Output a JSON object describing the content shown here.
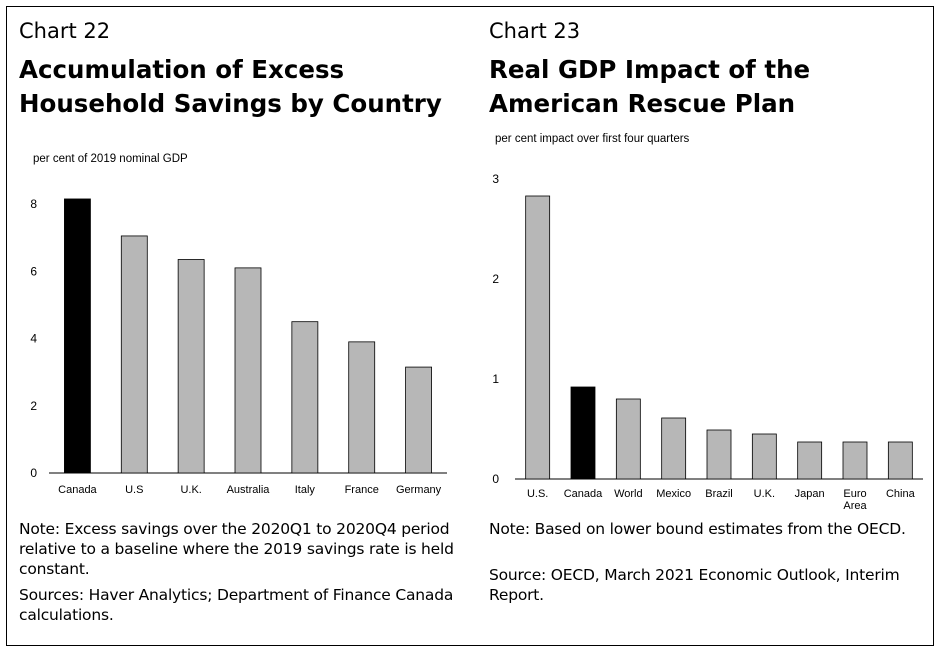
{
  "colors": {
    "highlight": "#000000",
    "bar": "#b7b7b7",
    "bar_stroke": "#000000"
  },
  "left": {
    "chart_number": "Chart 22",
    "title_line1": "Accumulation of Excess",
    "title_line2": "Household Savings by Country",
    "units": "per cent of 2019 nominal GDP",
    "note": "Note: Excess savings over the 2020Q1 to 2020Q4 period relative to a baseline where the 2019 savings rate is held constant.",
    "sources": "Sources: Haver Analytics; Department of Finance Canada calculations."
  },
  "right": {
    "chart_number": "Chart 23",
    "title_line1": "Real GDP Impact of the",
    "title_line2": "American Rescue Plan",
    "units": "per cent impact over first four quarters",
    "note": "Note: Based on lower bound estimates from the OECD.",
    "sources": "Source: OECD, March 2021 Economic Outlook, Interim Report."
  },
  "chart_data": [
    {
      "type": "bar",
      "title": "Accumulation of Excess Household Savings by Country",
      "ylabel": "per cent of 2019 nominal GDP",
      "categories": [
        "Canada",
        "U.S",
        "U.K.",
        "Australia",
        "Italy",
        "France",
        "Germany"
      ],
      "values": [
        8.15,
        7.05,
        6.35,
        6.1,
        4.5,
        3.9,
        3.15
      ],
      "highlight": "Canada",
      "ylim": [
        0,
        8
      ],
      "yticks": [
        0,
        2,
        4,
        6,
        8
      ],
      "grid": false
    },
    {
      "type": "bar",
      "title": "Real GDP Impact of the American Rescue Plan",
      "ylabel": "per cent impact over first four quarters",
      "categories": [
        "U.S.",
        "Canada",
        "World",
        "Mexico",
        "Brazil",
        "U.K.",
        "Japan",
        "Euro Area",
        "China"
      ],
      "values": [
        2.83,
        0.92,
        0.8,
        0.61,
        0.49,
        0.45,
        0.37,
        0.37,
        0.37
      ],
      "highlight": "Canada",
      "ylim": [
        0,
        3
      ],
      "yticks": [
        0,
        1,
        2,
        3
      ],
      "grid": false
    }
  ]
}
